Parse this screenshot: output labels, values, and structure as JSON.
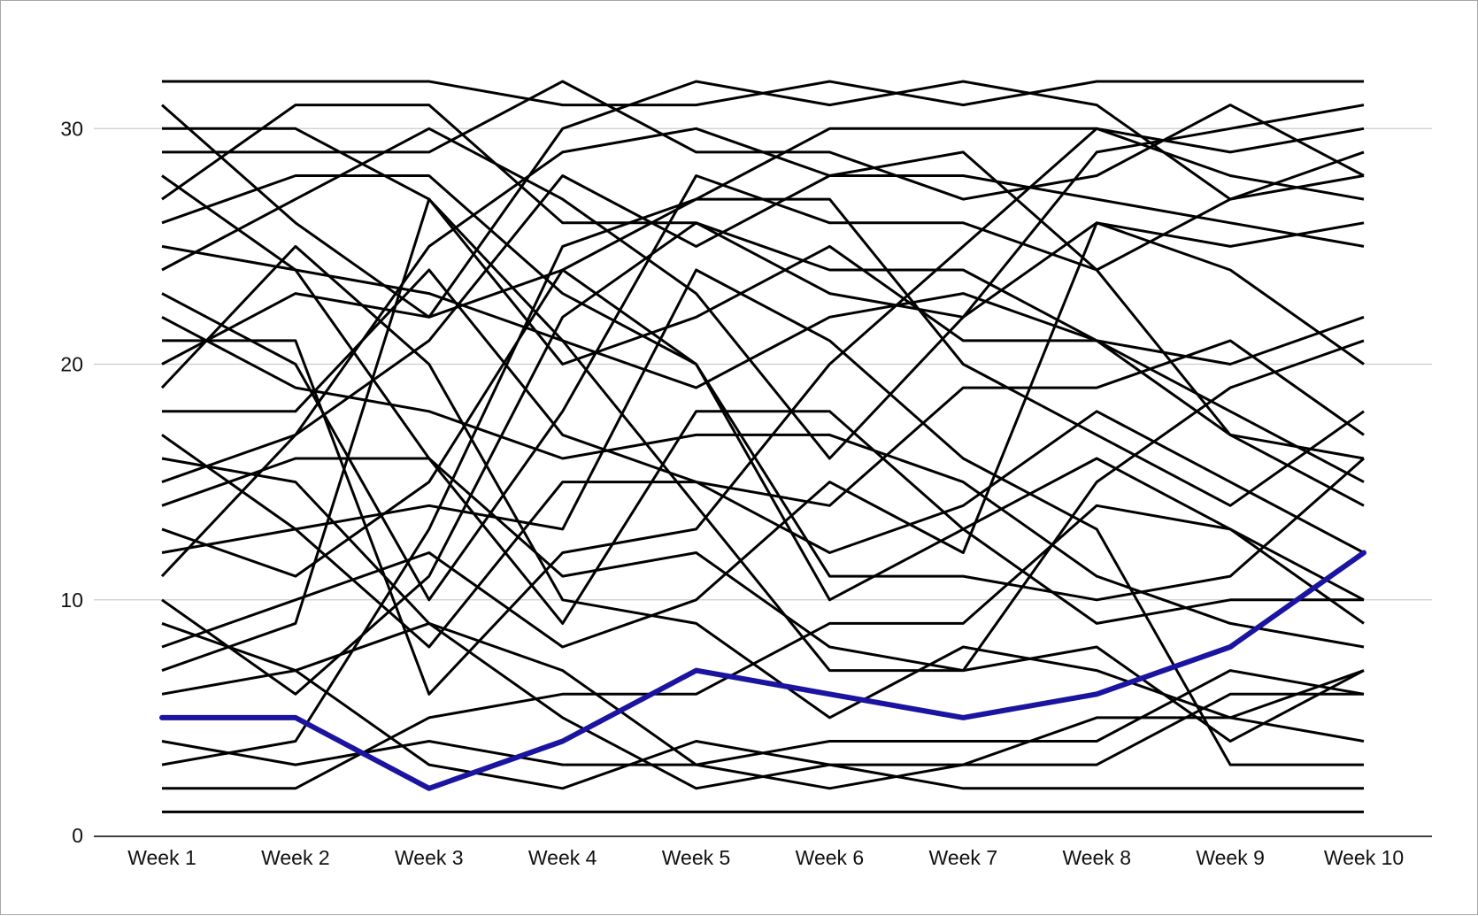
{
  "chart_data": {
    "type": "line",
    "title": "",
    "xlabel": "",
    "ylabel": "",
    "categories": [
      "Week 1",
      "Week 2",
      "Week 3",
      "Week 4",
      "Week 5",
      "Week 6",
      "Week 7",
      "Week 8",
      "Week 9",
      "Week 10"
    ],
    "ylim": [
      0,
      33
    ],
    "yticks": [
      0,
      10,
      20,
      30
    ],
    "grid": true,
    "legend": "none",
    "colors": {
      "default": "#000000",
      "highlight": "#1a14a0",
      "grid": "#cccccc",
      "axis": "#000000"
    },
    "series": [
      {
        "values": [
          32,
          32,
          32,
          31,
          31,
          32,
          31,
          32,
          32,
          32
        ]
      },
      {
        "values": [
          31,
          26,
          22,
          30,
          32,
          31,
          32,
          31,
          27,
          28
        ]
      },
      {
        "values": [
          30,
          30,
          27,
          20,
          22,
          25,
          21,
          21,
          20,
          22
        ]
      },
      {
        "values": [
          29,
          29,
          29,
          32,
          29,
          29,
          27,
          28,
          31,
          28
        ]
      },
      {
        "values": [
          28,
          24,
          23,
          21,
          19,
          22,
          23,
          21,
          17,
          16
        ]
      },
      {
        "values": [
          27,
          31,
          31,
          26,
          26,
          24,
          24,
          21,
          18,
          15
        ]
      },
      {
        "values": [
          26,
          28,
          28,
          23,
          20,
          11,
          11,
          10,
          11,
          16
        ]
      },
      {
        "values": [
          25,
          24,
          16,
          11,
          12,
          8,
          7,
          8,
          4,
          7
        ]
      },
      {
        "values": [
          24,
          27,
          30,
          27,
          23,
          16,
          22,
          29,
          30,
          31
        ]
      },
      {
        "values": [
          23,
          20,
          10,
          18,
          28,
          26,
          26,
          24,
          17,
          14
        ]
      },
      {
        "values": [
          22,
          19,
          18,
          16,
          17,
          17,
          15,
          11,
          9,
          8
        ]
      },
      {
        "values": [
          21,
          21,
          6,
          12,
          13,
          20,
          25,
          30,
          29,
          30
        ]
      },
      {
        "values": [
          20,
          23,
          22,
          24,
          27,
          30,
          30,
          30,
          28,
          27
        ]
      },
      {
        "values": [
          19,
          25,
          20,
          10,
          9,
          5,
          8,
          7,
          5,
          4
        ]
      },
      {
        "values": [
          18,
          18,
          24,
          17,
          15,
          14,
          19,
          19,
          21,
          17
        ]
      },
      {
        "values": [
          17,
          13,
          8,
          15,
          15,
          12,
          14,
          18,
          15,
          12
        ]
      },
      {
        "values": [
          16,
          15,
          9,
          7,
          3,
          4,
          4,
          4,
          7,
          6
        ]
      },
      {
        "values": [
          15,
          17,
          21,
          28,
          25,
          28,
          28,
          27,
          26,
          25
        ]
      },
      {
        "values": [
          14,
          16,
          16,
          9,
          18,
          18,
          13,
          9,
          10,
          10
        ]
      },
      {
        "values": [
          13,
          11,
          15,
          24,
          20,
          10,
          13,
          16,
          13,
          9
        ]
      },
      {
        "values": [
          12,
          13,
          14,
          13,
          24,
          21,
          16,
          13,
          3,
          3
        ]
      },
      {
        "values": [
          11,
          17,
          25,
          29,
          30,
          28,
          29,
          24,
          27,
          29
        ]
      },
      {
        "values": [
          10,
          6,
          11,
          22,
          26,
          23,
          22,
          26,
          25,
          26
        ]
      },
      {
        "values": [
          9,
          7,
          3,
          2,
          4,
          3,
          2,
          2,
          2,
          2
        ]
      },
      {
        "values": [
          8,
          10,
          12,
          8,
          10,
          15,
          12,
          26,
          24,
          20
        ]
      },
      {
        "values": [
          7,
          9,
          27,
          21,
          14,
          7,
          7,
          15,
          19,
          21
        ]
      },
      {
        "values": [
          6,
          7,
          9,
          5,
          2,
          3,
          3,
          3,
          6,
          6
        ]
      },
      {
        "values": [
          4,
          3,
          4,
          3,
          3,
          2,
          3,
          5,
          5,
          7
        ]
      },
      {
        "values": [
          3,
          4,
          13,
          25,
          27,
          27,
          20,
          17,
          14,
          18
        ]
      },
      {
        "values": [
          2,
          2,
          5,
          6,
          6,
          9,
          9,
          14,
          13,
          10
        ]
      },
      {
        "values": [
          1,
          1,
          1,
          1,
          1,
          1,
          1,
          1,
          1,
          1
        ]
      },
      {
        "name": "",
        "highlight": true,
        "values": [
          5,
          5,
          2,
          4,
          7,
          6,
          5,
          6,
          8,
          12
        ]
      }
    ]
  }
}
